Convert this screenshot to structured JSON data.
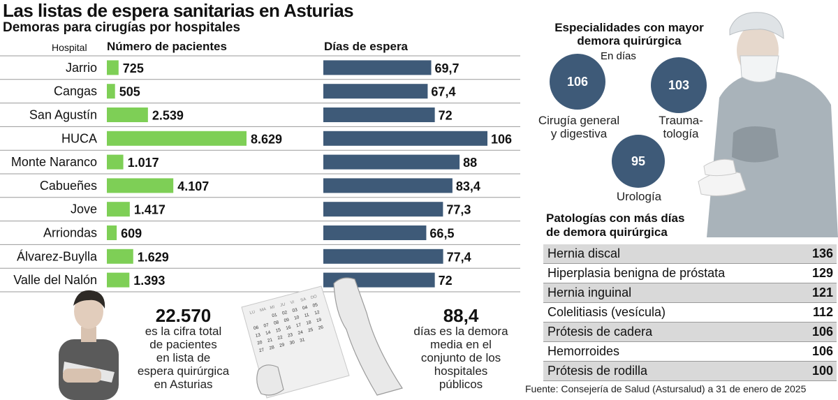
{
  "header": {
    "title": "Las listas de espera sanitarias en Asturias",
    "subtitle": "Demoras para cirugías por hospitales"
  },
  "columns": {
    "hospital": "Hospital",
    "patients": "Número de pacientes",
    "days": "Días de espera"
  },
  "chart_data": [
    {
      "type": "bar",
      "orientation": "horizontal",
      "title": "Número de pacientes",
      "categories": [
        "Jarrio",
        "Cangas",
        "San Agustín",
        "HUCA",
        "Monte Naranco",
        "Cabueñes",
        "Jove",
        "Arriondas",
        "Álvarez-Buylla",
        "Valle del Nalón"
      ],
      "values": [
        725,
        505,
        2539,
        8629,
        1017,
        4107,
        1417,
        609,
        1629,
        1393
      ],
      "value_labels": [
        "725",
        "505",
        "2.539",
        "8.629",
        "1.017",
        "4.107",
        "1.417",
        "609",
        "1.629",
        "1.393"
      ],
      "color": "#7ecf56",
      "grid": false
    },
    {
      "type": "bar",
      "orientation": "horizontal",
      "title": "Días de espera",
      "categories": [
        "Jarrio",
        "Cangas",
        "San Agustín",
        "HUCA",
        "Monte Naranco",
        "Cabueñes",
        "Jove",
        "Arriondas",
        "Álvarez-Buylla",
        "Valle del Nalón"
      ],
      "values": [
        69.7,
        67.4,
        72,
        106,
        88,
        83.4,
        77.3,
        66.5,
        77.4,
        72
      ],
      "value_labels": [
        "69,7",
        "67,4",
        "72",
        "106",
        "88",
        "83,4",
        "77,3",
        "66,5",
        "77,4",
        "72"
      ],
      "color": "#3e5a78",
      "grid": false
    }
  ],
  "summary": {
    "total_patients": "22.570",
    "total_desc": [
      "es la cifra total",
      "de pacientes",
      "en lista de",
      "espera quirúrgica",
      "en Asturias"
    ],
    "avg_days": "88,4",
    "avg_desc": [
      "días es la demora",
      "media en el",
      "conjunto de los",
      "hospitales",
      "públicos"
    ]
  },
  "calendar": {
    "weekdays": [
      "LU",
      "MA",
      "MI",
      "JU",
      "VI",
      "SA",
      "DO"
    ],
    "days": [
      "",
      "",
      "01",
      "02",
      "03",
      "04",
      "05",
      "06",
      "07",
      "08",
      "09",
      "10",
      "11",
      "12",
      "13",
      "14",
      "15",
      "16",
      "17",
      "18",
      "19",
      "20",
      "21",
      "22",
      "23",
      "24",
      "25",
      "26",
      "27",
      "28",
      "29",
      "30",
      "31"
    ]
  },
  "specialties": {
    "title": "Especialidades con  mayor demora quirúrgica",
    "unit": "En días",
    "items": [
      {
        "value": "106",
        "label": [
          "Cirugía general",
          "y digestiva"
        ]
      },
      {
        "value": "103",
        "label": [
          "Trauma-",
          "tología"
        ]
      },
      {
        "value": "95",
        "label": [
          "Urología"
        ]
      }
    ],
    "bubble_color": "#3e5a78"
  },
  "pathologies": {
    "title": [
      "Patologías con más días",
      "de demora quirúrgica"
    ],
    "rows": [
      {
        "name": "Hernia discal",
        "value": "136"
      },
      {
        "name": "Hiperplasia benigna de próstata",
        "value": "129"
      },
      {
        "name": "Hernia inguinal",
        "value": "121"
      },
      {
        "name": "Colelitiasis (vesícula)",
        "value": "112"
      },
      {
        "name": "Prótesis de cadera",
        "value": "106"
      },
      {
        "name": "Hemorroides",
        "value": "106"
      },
      {
        "name": "Prótesis de rodilla",
        "value": "100"
      }
    ]
  },
  "source": "Fuente: Consejería de Salud (Astursalud) a 31 de enero de 2025"
}
